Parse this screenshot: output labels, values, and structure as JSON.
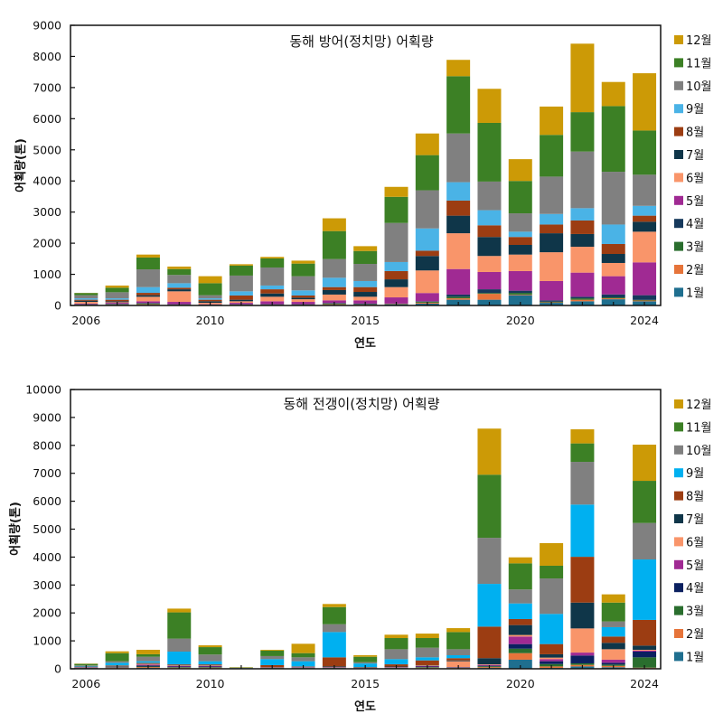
{
  "chart_data": [
    {
      "type": "bar",
      "stacked": true,
      "title": "동해 방어(정치망) 어획량",
      "xlabel": "연도",
      "ylabel": "어획량(톤)",
      "ylim": [
        0,
        9000
      ],
      "yticks": [
        0,
        1000,
        2000,
        3000,
        4000,
        5000,
        6000,
        7000,
        8000,
        9000
      ],
      "xticks": [
        2006,
        2010,
        2015,
        2020,
        2024
      ],
      "grid": false,
      "legend_position": "right",
      "x": [
        2006,
        2007,
        2008,
        2009,
        2010,
        2011,
        2012,
        2013,
        2014,
        2015,
        2016,
        2017,
        2018,
        2019,
        2020,
        2021,
        2022,
        2023,
        2024
      ],
      "series": [
        {
          "name": "1월",
          "color": "#1f6f8f",
          "values": [
            10,
            10,
            20,
            10,
            5,
            10,
            10,
            10,
            20,
            20,
            30,
            60,
            185,
            185,
            330,
            85,
            135,
            200,
            135
          ]
        },
        {
          "name": "2월",
          "color": "#e6743a",
          "values": [
            10,
            10,
            20,
            10,
            5,
            10,
            10,
            10,
            20,
            10,
            10,
            30,
            45,
            190,
            20,
            15,
            50,
            30,
            25
          ]
        },
        {
          "name": "3월",
          "color": "#2a6e2e",
          "values": [
            10,
            20,
            20,
            10,
            10,
            10,
            10,
            10,
            20,
            10,
            10,
            30,
            50,
            25,
            55,
            20,
            45,
            30,
            20
          ]
        },
        {
          "name": "4월",
          "color": "#16395c",
          "values": [
            10,
            10,
            20,
            10,
            10,
            10,
            10,
            10,
            20,
            20,
            10,
            15,
            70,
            120,
            70,
            45,
            50,
            95,
            150
          ]
        },
        {
          "name": "5월",
          "color": "#a02a93",
          "values": [
            20,
            35,
            55,
            75,
            10,
            45,
            95,
            75,
            85,
            105,
            200,
            265,
            820,
            555,
            630,
            620,
            775,
            585,
            1055
          ]
        },
        {
          "name": "6월",
          "color": "#f9956a",
          "values": [
            55,
            20,
            145,
            340,
            45,
            50,
            145,
            85,
            185,
            115,
            330,
            725,
            1150,
            515,
            530,
            925,
            830,
            425,
            985
          ]
        },
        {
          "name": "7월",
          "color": "#0f3649",
          "values": [
            40,
            30,
            50,
            65,
            50,
            50,
            105,
            50,
            145,
            155,
            250,
            465,
            565,
            610,
            310,
            610,
            410,
            290,
            320
          ]
        },
        {
          "name": "8월",
          "color": "#9c3d12",
          "values": [
            30,
            50,
            75,
            50,
            50,
            135,
            135,
            70,
            95,
            155,
            265,
            170,
            485,
            375,
            255,
            280,
            435,
            320,
            195
          ]
        },
        {
          "name": "9월",
          "color": "#4ab3e6",
          "values": [
            45,
            45,
            185,
            145,
            45,
            135,
            120,
            165,
            300,
            195,
            290,
            715,
            590,
            485,
            170,
            340,
            395,
            625,
            315
          ]
        },
        {
          "name": "10월",
          "color": "#808080",
          "values": [
            100,
            195,
            570,
            265,
            100,
            505,
            580,
            455,
            600,
            550,
            1255,
            1225,
            1565,
            920,
            590,
            1200,
            1820,
            1695,
            1000
          ]
        },
        {
          "name": "11월",
          "color": "#3c8025",
          "values": [
            70,
            145,
            380,
            190,
            385,
            320,
            290,
            405,
            900,
            415,
            840,
            1130,
            1840,
            1885,
            1040,
            1340,
            1265,
            2110,
            1420
          ]
        },
        {
          "name": "12월",
          "color": "#cc9a06",
          "values": [
            5,
            70,
            95,
            80,
            225,
            45,
            50,
            95,
            410,
            155,
            320,
            695,
            525,
            1095,
            700,
            910,
            2200,
            775,
            1840
          ]
        }
      ]
    },
    {
      "type": "bar",
      "stacked": true,
      "title": "동해 전갱이(정치망) 어획량",
      "xlabel": "연도",
      "ylabel": "어획량(톤)",
      "ylim": [
        0,
        10000
      ],
      "yticks": [
        0,
        1000,
        2000,
        3000,
        4000,
        5000,
        6000,
        7000,
        8000,
        9000,
        10000
      ],
      "xticks": [
        2006,
        2010,
        2015,
        2020,
        2024
      ],
      "grid": false,
      "legend_position": "right",
      "x": [
        2006,
        2007,
        2008,
        2009,
        2010,
        2011,
        2012,
        2013,
        2014,
        2015,
        2016,
        2017,
        2018,
        2019,
        2020,
        2021,
        2022,
        2023,
        2024
      ],
      "series": [
        {
          "name": "1월",
          "color": "#1f6f8f",
          "values": [
            10,
            20,
            30,
            20,
            20,
            5,
            10,
            10,
            10,
            10,
            10,
            20,
            20,
            30,
            325,
            30,
            85,
            55,
            20
          ]
        },
        {
          "name": "2월",
          "color": "#e6743a",
          "values": [
            10,
            20,
            30,
            20,
            20,
            3,
            10,
            10,
            10,
            5,
            10,
            20,
            10,
            30,
            235,
            55,
            55,
            50,
            20
          ]
        },
        {
          "name": "3월",
          "color": "#2a6e2e",
          "values": [
            10,
            10,
            20,
            20,
            20,
            2,
            10,
            10,
            10,
            5,
            10,
            20,
            10,
            30,
            160,
            85,
            55,
            45,
            370
          ]
        },
        {
          "name": "4월",
          "color": "#0b2060",
          "values": [
            10,
            10,
            40,
            20,
            20,
            2,
            10,
            10,
            10,
            5,
            10,
            20,
            10,
            20,
            165,
            100,
            280,
            65,
            205
          ]
        },
        {
          "name": "5월",
          "color": "#a02a93",
          "values": [
            10,
            10,
            30,
            20,
            20,
            2,
            5,
            10,
            10,
            5,
            10,
            20,
            10,
            30,
            270,
            75,
            105,
            110,
            35
          ]
        },
        {
          "name": "6월",
          "color": "#f9956a",
          "values": [
            10,
            10,
            30,
            20,
            20,
            2,
            5,
            10,
            10,
            5,
            10,
            20,
            210,
            20,
            55,
            55,
            865,
            375,
            30
          ]
        },
        {
          "name": "7월",
          "color": "#0f3649",
          "values": [
            10,
            20,
            20,
            20,
            20,
            2,
            5,
            10,
            25,
            10,
            20,
            10,
            30,
            220,
            355,
            120,
            925,
            230,
            150
          ]
        },
        {
          "name": "8월",
          "color": "#9c3d12",
          "values": [
            10,
            20,
            15,
            20,
            20,
            2,
            75,
            15,
            325,
            15,
            80,
            170,
            80,
            1130,
            215,
            365,
            1640,
            225,
            920
          ]
        },
        {
          "name": "9월",
          "color": "#00b0f0",
          "values": [
            20,
            95,
            55,
            455,
            110,
            5,
            215,
            185,
            905,
            130,
            185,
            110,
            105,
            1530,
            560,
            1080,
            1870,
            335,
            2165
          ]
        },
        {
          "name": "10월",
          "color": "#808080",
          "values": [
            20,
            55,
            160,
            465,
            240,
            5,
            110,
            140,
            280,
            45,
            355,
            345,
            215,
            1650,
            500,
            1270,
            1530,
            205,
            1305
          ]
        },
        {
          "name": "11월",
          "color": "#3c8025",
          "values": [
            55,
            290,
            90,
            940,
            265,
            15,
            195,
            150,
            615,
            195,
            400,
            345,
            615,
            2260,
            935,
            455,
            660,
            675,
            1510
          ]
        },
        {
          "name": "12월",
          "color": "#cc9a06",
          "values": [
            10,
            65,
            160,
            135,
            65,
            10,
            30,
            335,
            110,
            55,
            120,
            160,
            140,
            1650,
            215,
            810,
            505,
            295,
            1295
          ]
        }
      ]
    }
  ]
}
